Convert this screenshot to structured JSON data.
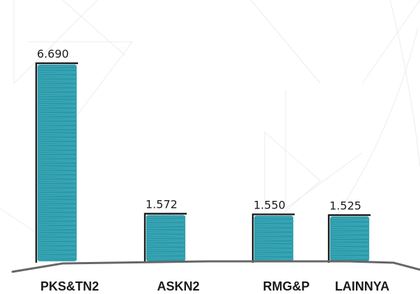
{
  "chart_data": {
    "type": "bar",
    "categories": [
      "PKS&TN2",
      "ASKN2",
      "RMG&P",
      "LAINNYA"
    ],
    "values": [
      6690,
      1572,
      1550,
      1525
    ],
    "value_labels": [
      "6.690",
      "1.572",
      "1.550",
      "1.525"
    ],
    "title": "",
    "xlabel": "",
    "ylabel": "",
    "ylim": [
      0,
      6690
    ],
    "grid": false,
    "legend": "none",
    "bar_color": "#2a9aaa",
    "bracket_color": "#1a1a1a",
    "baseline_color": "#666666"
  }
}
